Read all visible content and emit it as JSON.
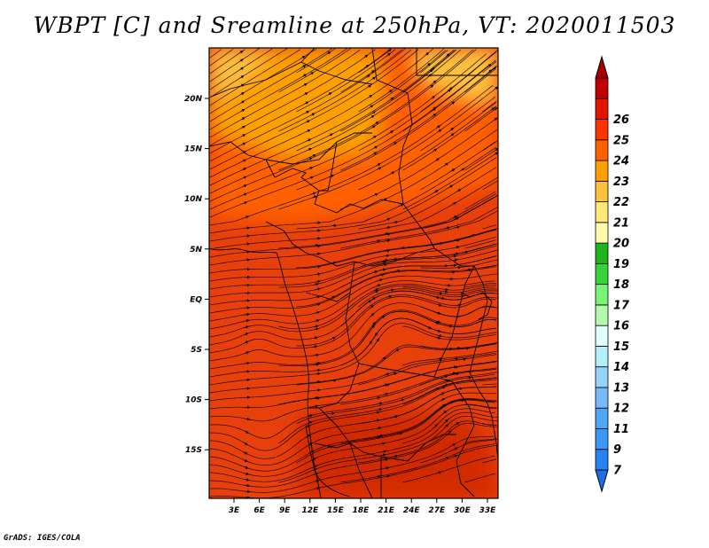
{
  "title": "WBPT [C] and Sreamline at 250hPa, VT: 2020011503",
  "credit": "GrADS: IGES/COLA",
  "map": {
    "lon_ticks": [
      "3E",
      "6E",
      "9E",
      "12E",
      "15E",
      "18E",
      "21E",
      "24E",
      "27E",
      "30E",
      "33E"
    ],
    "lat_ticks": [
      "20N",
      "15N",
      "10N",
      "5N",
      "EQ",
      "5S",
      "10S",
      "15S"
    ]
  },
  "colorbar": {
    "levels": [
      "7",
      "9",
      "11",
      "12",
      "13",
      "14",
      "15",
      "16",
      "17",
      "18",
      "19",
      "20",
      "21",
      "22",
      "23",
      "24",
      "25",
      "26"
    ],
    "colors": [
      "#1e6ee6",
      "#2882f0",
      "#3c96f5",
      "#50a5f5",
      "#78b9fa",
      "#96d2fa",
      "#b4f0fa",
      "#e1ffff",
      "#b4faaa",
      "#78f573",
      "#37d23c",
      "#1eb41e",
      "#fffaaa",
      "#ffe878",
      "#ffc03c",
      "#ffa000",
      "#ff6000",
      "#ff3200",
      "#e11400",
      "#c00000",
      "#a50000"
    ],
    "arrow_colors": {
      "low": "#1e6ee6",
      "high": "#a50000"
    }
  },
  "field_colors": {
    "main": "#e8400a",
    "orange": "#ff6000",
    "light_orange": "#ffa000",
    "yellow_orange": "#ffc03c",
    "deep": "#d22a06"
  }
}
